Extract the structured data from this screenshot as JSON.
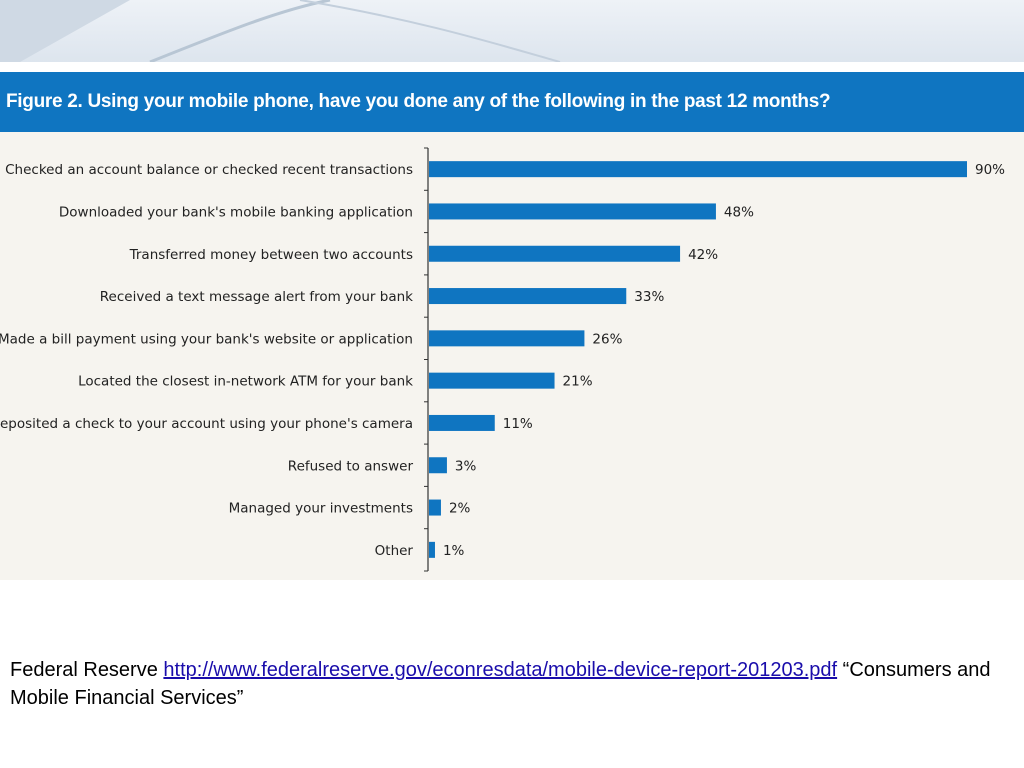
{
  "figure": {
    "title": "Figure 2. Using your mobile phone, have you done any of the following in the past 12 months?"
  },
  "chart_data": {
    "type": "bar",
    "orientation": "horizontal",
    "title": "Figure 2. Using your mobile phone, have you done any of the following in the past 12 months?",
    "xlabel": "",
    "ylabel": "",
    "xlim": [
      0,
      90
    ],
    "grid": false,
    "bar_color": "#0f75c1",
    "categories": [
      "Checked an account balance or checked recent transactions",
      "Downloaded your bank's mobile banking application",
      "Transferred money between two accounts",
      "Received a text message alert from your bank",
      "Made a bill payment using your bank's website or application",
      "Located the closest in-network ATM for your bank",
      "Deposited a check to your account using your phone's camera",
      "Refused to answer",
      "Managed your investments",
      "Other"
    ],
    "values": [
      90,
      48,
      42,
      33,
      26,
      21,
      11,
      3,
      2,
      1
    ],
    "data_labels": [
      "90%",
      "48%",
      "42%",
      "33%",
      "26%",
      "21%",
      "11%",
      "3%",
      "2%",
      "1%"
    ]
  },
  "source": {
    "prefix": "Federal Reserve ",
    "link_text": "http://www.federalreserve.gov/econresdata/mobile-device-report-201203.pdf",
    "suffix": " “Consumers and Mobile Financial Services”"
  }
}
